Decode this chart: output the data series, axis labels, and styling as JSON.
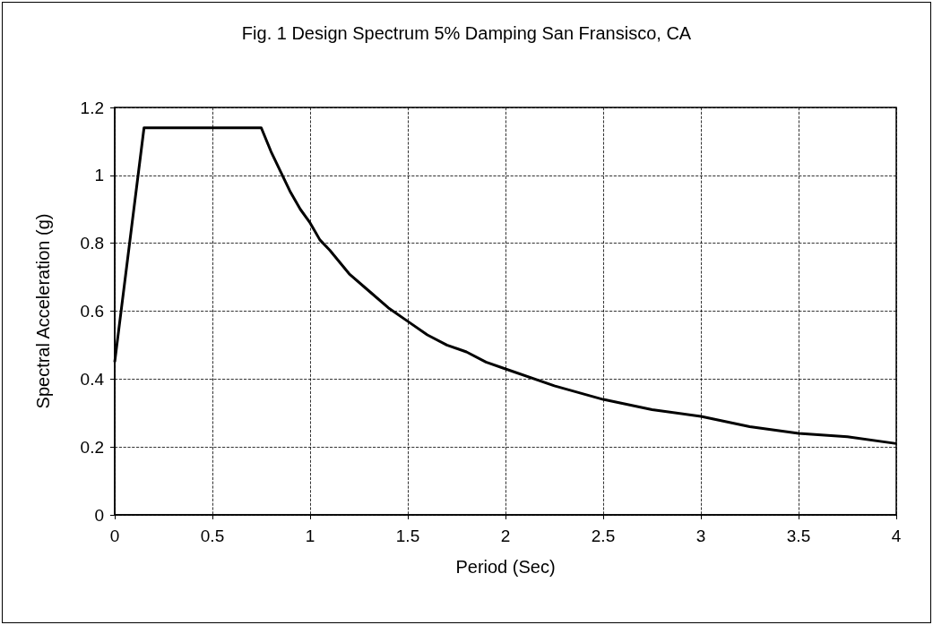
{
  "chart_data": {
    "type": "line",
    "title": "Fig. 1 Design Spectrum 5% Damping San Fransisco, CA",
    "xlabel": "Period (Sec)",
    "ylabel": "Spectral Acceleration (g)",
    "x": [
      0,
      0.15,
      0.75,
      0.8,
      0.85,
      0.9,
      0.95,
      1,
      1.05,
      1.1,
      1.2,
      1.3,
      1.4,
      1.5,
      1.6,
      1.7,
      1.8,
      1.9,
      2,
      2.25,
      2.5,
      2.75,
      3,
      3.25,
      3.5,
      3.75,
      4
    ],
    "series": [
      {
        "color": "#000000",
        "values": [
          0.45,
          1.14,
          1.14,
          1.07,
          1.01,
          0.95,
          0.9,
          0.86,
          0.81,
          0.78,
          0.71,
          0.66,
          0.61,
          0.57,
          0.53,
          0.5,
          0.48,
          0.45,
          0.43,
          0.38,
          0.34,
          0.31,
          0.29,
          0.26,
          0.24,
          0.23,
          0.21
        ]
      }
    ],
    "xlim": [
      0,
      4
    ],
    "xticks": [
      0,
      0.5,
      1,
      1.5,
      2,
      2.5,
      3,
      3.5,
      4
    ],
    "ylim": [
      0,
      1.2
    ],
    "yticks": [
      0,
      0.2,
      0.4,
      0.6,
      0.8,
      1,
      1.2
    ],
    "grid": true,
    "marker": "none",
    "line_style": "solid"
  }
}
